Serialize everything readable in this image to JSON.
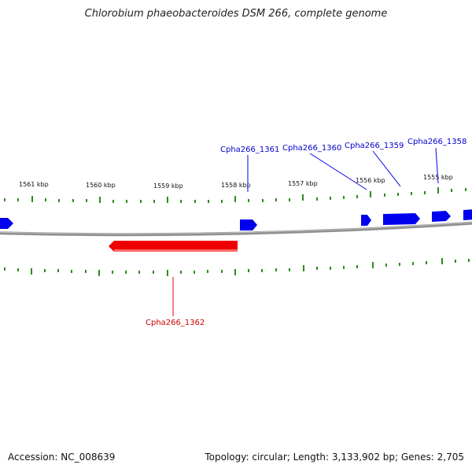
{
  "title": "Chlorobium phaeobacteroides DSM 266, complete genome",
  "accession_text": "Accession: NC_008639",
  "summary_text": "Topology: circular; Length: 3,133,902 bp; Genes: 2,705",
  "colors": {
    "forward_gene": "#0000ee",
    "reverse_gene": "#ee0000",
    "tick": "#2e8b1e",
    "backbone": "#808080"
  },
  "kbp_labels": [
    "1561 kbp",
    "1560 kbp",
    "1559 kbp",
    "1558 kbp",
    "1557 kbp",
    "1556 kbp",
    "1555 kbp"
  ],
  "genes": {
    "forward_labels": [
      "Cpha266_1361",
      "Cpha266_1360",
      "Cpha266_1359",
      "Cpha266_1358"
    ],
    "reverse_labels": [
      "Cpha266_1362"
    ]
  }
}
